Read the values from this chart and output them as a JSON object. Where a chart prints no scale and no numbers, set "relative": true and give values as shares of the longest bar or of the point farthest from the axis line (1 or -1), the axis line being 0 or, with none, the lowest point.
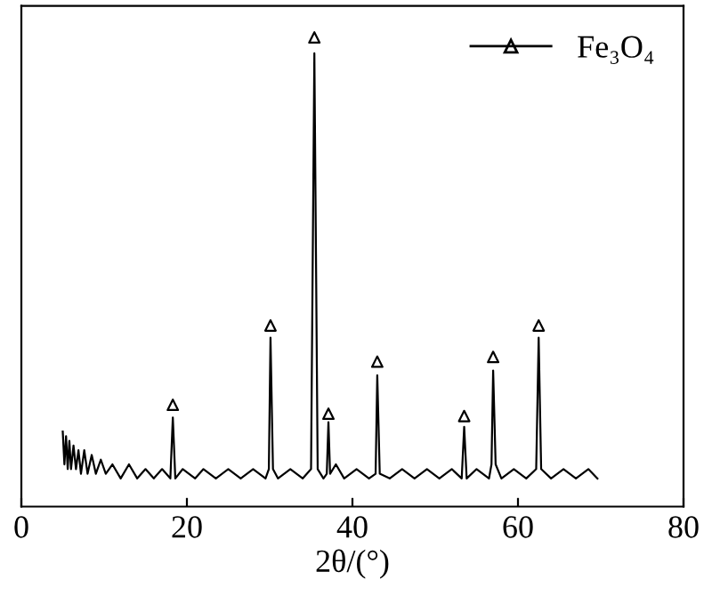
{
  "chart_data": {
    "type": "line",
    "relative": true,
    "xlabel": "2θ/(°)",
    "xlim": [
      0,
      80
    ],
    "xticks": [
      0,
      20,
      40,
      60,
      80
    ],
    "tick_labels": "x",
    "grid": false,
    "legend": "top right",
    "series": [
      {
        "color": "#000000",
        "x": [
          5.0,
          5.2,
          5.4,
          5.6,
          5.8,
          6.0,
          6.3,
          6.6,
          6.9,
          7.2,
          7.6,
          8.0,
          8.5,
          9.0,
          9.6,
          10.2,
          11,
          12,
          13,
          14,
          15,
          16,
          17,
          18.0,
          18.3,
          18.6,
          19.5,
          21,
          22,
          23.5,
          25,
          26.5,
          28,
          29.5,
          29.9,
          30.1,
          30.4,
          31,
          32.5,
          34,
          35.0,
          35.4,
          35.8,
          36.5,
          36.9,
          37.1,
          37.3,
          38,
          39,
          40.5,
          42,
          42.8,
          43.0,
          43.3,
          44.5,
          46,
          47.5,
          49,
          50.5,
          52,
          53.2,
          53.5,
          53.8,
          55,
          56.5,
          56.8,
          57.0,
          57.3,
          58,
          59.5,
          61,
          62.2,
          62.5,
          62.8,
          64,
          65.5,
          67,
          68.5,
          69.6
        ],
        "values": [
          0.16,
          0.09,
          0.15,
          0.08,
          0.14,
          0.08,
          0.13,
          0.08,
          0.12,
          0.07,
          0.12,
          0.07,
          0.11,
          0.07,
          0.1,
          0.07,
          0.09,
          0.06,
          0.09,
          0.06,
          0.08,
          0.06,
          0.08,
          0.06,
          0.19,
          0.06,
          0.08,
          0.06,
          0.08,
          0.06,
          0.08,
          0.06,
          0.08,
          0.06,
          0.08,
          0.36,
          0.08,
          0.06,
          0.08,
          0.06,
          0.08,
          0.966,
          0.08,
          0.06,
          0.07,
          0.18,
          0.07,
          0.09,
          0.06,
          0.08,
          0.06,
          0.07,
          0.28,
          0.07,
          0.06,
          0.08,
          0.06,
          0.08,
          0.06,
          0.08,
          0.06,
          0.17,
          0.06,
          0.08,
          0.06,
          0.09,
          0.29,
          0.09,
          0.06,
          0.08,
          0.06,
          0.08,
          0.36,
          0.08,
          0.06,
          0.08,
          0.06,
          0.08,
          0.06
        ]
      },
      {
        "type": "scatter",
        "name": "Fe₃O₄",
        "color": "#000000",
        "marker": "triangle",
        "x": [
          18.3,
          30.1,
          35.4,
          37.1,
          43.0,
          53.5,
          57.0,
          62.5
        ],
        "values": [
          0.217,
          0.386,
          1.0,
          0.198,
          0.309,
          0.193,
          0.319,
          0.386
        ]
      }
    ]
  }
}
